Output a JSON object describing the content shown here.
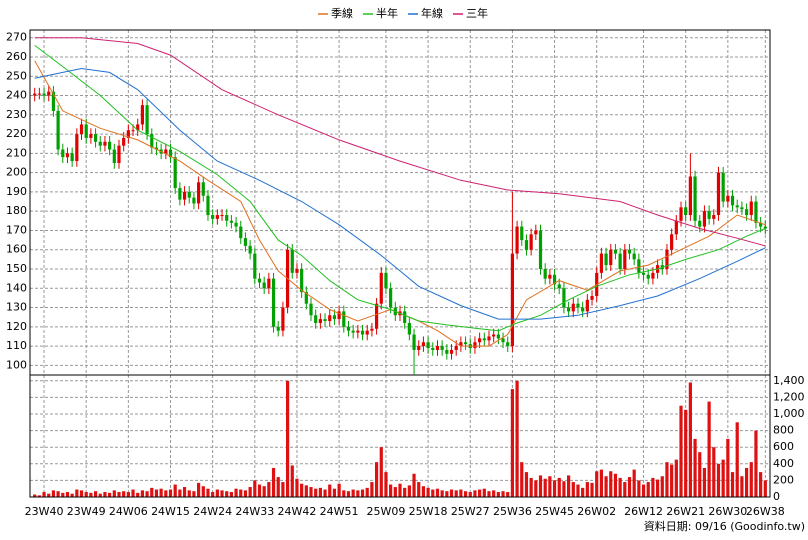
{
  "chart_data": {
    "type": "candlestick",
    "open": [
      240,
      241,
      241,
      240,
      242,
      232,
      212,
      208,
      210,
      206,
      220,
      225,
      218,
      220,
      216,
      214,
      216,
      212,
      205,
      214,
      218,
      222,
      222,
      225,
      235,
      220,
      213,
      212,
      210,
      212,
      208,
      192,
      186,
      190,
      187,
      184,
      195,
      188,
      178,
      176,
      178,
      178,
      175,
      174,
      172,
      166,
      162,
      158,
      145,
      143,
      140,
      145,
      120,
      118,
      130,
      160,
      148,
      150,
      138,
      132,
      126,
      122,
      124,
      123,
      126,
      124,
      128,
      120,
      118,
      117,
      118,
      116,
      118,
      119,
      132,
      148,
      140,
      130,
      126,
      128,
      122,
      116,
      108,
      110,
      112,
      109,
      108,
      110,
      108,
      106,
      108,
      110,
      112,
      111,
      109,
      112,
      114,
      113,
      115,
      116,
      114,
      112,
      110,
      158,
      172,
      165,
      160,
      168,
      170,
      150,
      145,
      147,
      142,
      140,
      130,
      128,
      132,
      130,
      128,
      134,
      136,
      148,
      158,
      152,
      160,
      158,
      150,
      160,
      158,
      155,
      148,
      147,
      145,
      148,
      152,
      150,
      160,
      168,
      175,
      182,
      178,
      198,
      175,
      172,
      180,
      176,
      178,
      200,
      185,
      188,
      183,
      182,
      181,
      178,
      185,
      174,
      172
    ],
    "high": [
      244,
      244,
      244,
      245,
      245,
      235,
      215,
      213,
      213,
      223,
      228,
      228,
      223,
      223,
      219,
      219,
      219,
      215,
      217,
      221,
      225,
      225,
      228,
      238,
      238,
      223,
      216,
      215,
      215,
      215,
      211,
      195,
      193,
      193,
      190,
      198,
      198,
      191,
      181,
      181,
      181,
      181,
      178,
      177,
      175,
      169,
      165,
      161,
      148,
      146,
      148,
      148,
      123,
      133,
      163,
      163,
      153,
      153,
      141,
      135,
      129,
      127,
      127,
      129,
      129,
      131,
      131,
      123,
      121,
      121,
      121,
      121,
      122,
      135,
      151,
      151,
      143,
      133,
      131,
      131,
      125,
      119,
      113,
      115,
      115,
      112,
      113,
      113,
      111,
      111,
      113,
      115,
      115,
      114,
      115,
      117,
      117,
      118,
      119,
      119,
      117,
      115,
      190,
      175,
      175,
      168,
      171,
      173,
      173,
      153,
      150,
      150,
      145,
      143,
      133,
      135,
      135,
      133,
      137,
      139,
      151,
      161,
      161,
      163,
      163,
      161,
      163,
      163,
      161,
      158,
      151,
      150,
      151,
      155,
      155,
      163,
      171,
      178,
      185,
      185,
      210,
      201,
      178,
      183,
      183,
      181,
      203,
      203,
      191,
      191,
      186,
      185,
      184,
      188,
      188,
      177,
      175
    ],
    "low": [
      237,
      238,
      237,
      237,
      229,
      209,
      205,
      205,
      203,
      203,
      217,
      215,
      215,
      213,
      211,
      211,
      209,
      202,
      202,
      211,
      215,
      219,
      219,
      222,
      217,
      210,
      209,
      207,
      207,
      205,
      189,
      183,
      183,
      184,
      181,
      181,
      185,
      175,
      173,
      173,
      175,
      172,
      171,
      169,
      163,
      159,
      155,
      142,
      140,
      137,
      137,
      117,
      115,
      115,
      127,
      145,
      145,
      135,
      129,
      123,
      119,
      119,
      120,
      120,
      121,
      121,
      117,
      115,
      114,
      114,
      113,
      113,
      115,
      116,
      129,
      137,
      127,
      123,
      123,
      119,
      113,
      95,
      105,
      107,
      106,
      105,
      105,
      105,
      103,
      103,
      105,
      107,
      108,
      106,
      106,
      109,
      110,
      110,
      112,
      111,
      109,
      107,
      107,
      155,
      162,
      157,
      157,
      165,
      147,
      142,
      142,
      139,
      137,
      127,
      125,
      125,
      127,
      125,
      125,
      131,
      133,
      145,
      149,
      149,
      155,
      147,
      147,
      155,
      152,
      145,
      144,
      142,
      142,
      145,
      147,
      147,
      157,
      165,
      172,
      175,
      175,
      172,
      169,
      169,
      173,
      173,
      175,
      182,
      182,
      180,
      179,
      178,
      175,
      175,
      171,
      169,
      168
    ],
    "close": [
      241,
      241,
      240,
      242,
      232,
      212,
      208,
      210,
      206,
      220,
      225,
      218,
      220,
      216,
      214,
      216,
      212,
      205,
      214,
      218,
      222,
      222,
      225,
      235,
      220,
      213,
      212,
      210,
      212,
      208,
      192,
      186,
      190,
      187,
      184,
      195,
      188,
      178,
      176,
      178,
      178,
      175,
      174,
      172,
      166,
      162,
      158,
      145,
      143,
      140,
      145,
      120,
      118,
      130,
      160,
      148,
      150,
      138,
      132,
      126,
      122,
      124,
      123,
      126,
      124,
      128,
      120,
      118,
      117,
      118,
      116,
      118,
      119,
      132,
      148,
      140,
      130,
      126,
      128,
      122,
      116,
      108,
      110,
      112,
      109,
      108,
      110,
      108,
      106,
      108,
      110,
      112,
      111,
      109,
      112,
      114,
      113,
      115,
      116,
      114,
      112,
      110,
      158,
      172,
      165,
      160,
      168,
      170,
      150,
      145,
      147,
      142,
      140,
      130,
      128,
      132,
      130,
      128,
      134,
      136,
      148,
      158,
      152,
      160,
      158,
      150,
      160,
      158,
      155,
      148,
      147,
      145,
      148,
      152,
      150,
      160,
      168,
      175,
      182,
      178,
      198,
      175,
      172,
      180,
      176,
      178,
      200,
      185,
      188,
      183,
      182,
      181,
      178,
      185,
      174,
      172,
      171
    ],
    "volume": [
      30,
      20,
      60,
      40,
      80,
      70,
      50,
      60,
      40,
      90,
      80,
      60,
      50,
      70,
      40,
      60,
      50,
      80,
      60,
      70,
      60,
      90,
      50,
      80,
      70,
      110,
      90,
      100,
      80,
      90,
      150,
      90,
      120,
      80,
      70,
      170,
      130,
      100,
      60,
      90,
      80,
      70,
      60,
      100,
      90,
      80,
      120,
      200,
      150,
      130,
      180,
      350,
      240,
      180,
      1400,
      380,
      220,
      160,
      140,
      120,
      100,
      110,
      90,
      150,
      100,
      160,
      80,
      70,
      90,
      80,
      90,
      110,
      180,
      420,
      600,
      300,
      150,
      120,
      160,
      110,
      140,
      280,
      180,
      130,
      110,
      90,
      100,
      80,
      70,
      90,
      80,
      90,
      70,
      60,
      80,
      90,
      100,
      70,
      80,
      60,
      70,
      60,
      1300,
      1400,
      420,
      300,
      230,
      200,
      260,
      220,
      250,
      200,
      230,
      190,
      260,
      180,
      150,
      110,
      180,
      170,
      310,
      330,
      250,
      310,
      280,
      230,
      180,
      240,
      330,
      200,
      150,
      180,
      230,
      210,
      250,
      420,
      390,
      450,
      1100,
      1050,
      1380,
      700,
      540,
      350,
      1150,
      600,
      400,
      450,
      700,
      300,
      900,
      250,
      350,
      420,
      800,
      300,
      200
    ],
    "up_color": "#e00000",
    "down_color": "#00a000",
    "volume_color": "#dd1111",
    "lines": [
      {
        "name": "季線",
        "color": "#e07020",
        "x": [
          0,
          6,
          14,
          22,
          31,
          37,
          44,
          48,
          52,
          57,
          63,
          69,
          76,
          82,
          86,
          91,
          97,
          101,
          105,
          112,
          118,
          125,
          131,
          138,
          144,
          150,
          156
        ],
        "values": [
          258,
          232,
          223,
          217,
          206,
          196,
          185,
          165,
          149,
          139,
          129,
          123,
          129,
          123,
          118,
          110,
          110,
          116,
          134,
          144,
          139,
          149,
          152,
          160,
          167,
          178,
          173
        ]
      },
      {
        "name": "半年",
        "color": "#20c020",
        "x": [
          0,
          6,
          14,
          22,
          31,
          39,
          46,
          52,
          57,
          63,
          69,
          76,
          82,
          88,
          95,
          99,
          103,
          108,
          114,
          120,
          127,
          133,
          139,
          146,
          152,
          156
        ],
        "values": [
          266,
          255,
          240,
          222,
          211,
          199,
          185,
          165,
          157,
          144,
          134,
          129,
          123,
          121,
          119,
          118,
          122,
          126,
          134,
          141,
          147,
          150,
          155,
          160,
          167,
          171
        ]
      },
      {
        "name": "年線",
        "color": "#2070d0",
        "x": [
          0,
          6,
          10,
          16,
          22,
          31,
          39,
          48,
          57,
          65,
          74,
          82,
          91,
          99,
          108,
          116,
          125,
          133,
          142,
          150,
          156
        ],
        "values": [
          249,
          252,
          254,
          252,
          243,
          222,
          206,
          196,
          185,
          173,
          157,
          141,
          131,
          124,
          124,
          126,
          131,
          136,
          145,
          154,
          161
        ]
      },
      {
        "name": "三年",
        "color": "#d02070",
        "x": [
          0,
          10,
          22,
          29,
          40,
          52,
          65,
          78,
          91,
          101,
          112,
          125,
          133,
          142,
          150,
          156
        ],
        "values": [
          270,
          270,
          267,
          261,
          243,
          230,
          217,
          206,
          196,
          191,
          189,
          185,
          178,
          171,
          166,
          162
        ]
      }
    ],
    "xlim": [
      -1,
      157
    ],
    "xticks": [
      {
        "value": 2,
        "label": "23W40"
      },
      {
        "value": 11,
        "label": "23W49"
      },
      {
        "value": 20,
        "label": "24W06"
      },
      {
        "value": 29,
        "label": "24W15"
      },
      {
        "value": 38,
        "label": "24W24"
      },
      {
        "value": 47,
        "label": "24W33"
      },
      {
        "value": 56,
        "label": "24W42"
      },
      {
        "value": 65,
        "label": "24W51"
      },
      {
        "value": 75,
        "label": "25W09"
      },
      {
        "value": 84,
        "label": "25W18"
      },
      {
        "value": 93,
        "label": "25W27"
      },
      {
        "value": 102,
        "label": "25W36"
      },
      {
        "value": 111,
        "label": "25W45"
      },
      {
        "value": 120,
        "label": "26W02"
      },
      {
        "value": 130,
        "label": "26W12"
      },
      {
        "value": 139,
        "label": "26W21"
      },
      {
        "value": 148,
        "label": "26W30"
      },
      {
        "value": 156,
        "label": "26W38"
      }
    ],
    "ylim": [
      95,
      274
    ],
    "yticks": [
      100,
      110,
      120,
      130,
      140,
      150,
      160,
      170,
      180,
      190,
      200,
      210,
      220,
      230,
      240,
      250,
      260,
      270
    ],
    "y2lim": [
      0,
      1470
    ],
    "y2ticks": [
      0,
      200,
      400,
      600,
      800,
      {
        "value": 1000,
        "label": "1,000"
      },
      {
        "value": 1200,
        "label": "1,200"
      },
      {
        "value": 1400,
        "label": "1,400"
      }
    ],
    "grid": true,
    "footer": "資料日期: 09/16  (Goodinfo.tw)"
  }
}
